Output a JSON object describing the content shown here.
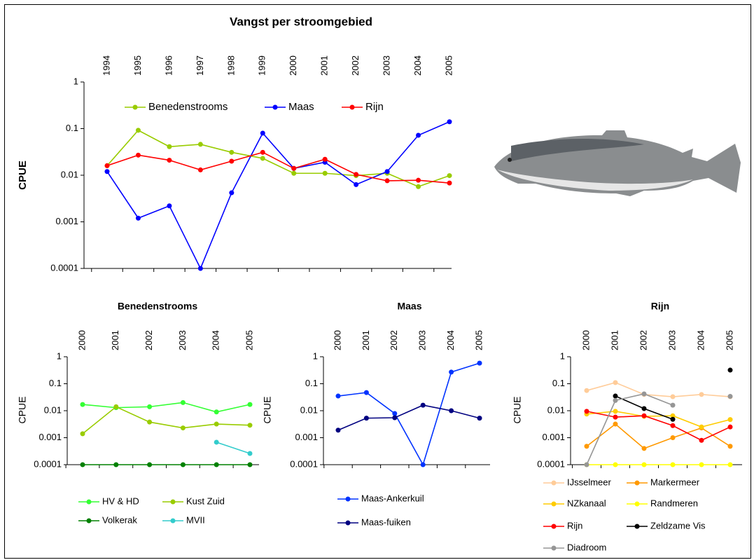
{
  "chart_data": [
    {
      "type": "line",
      "title": "Vangst per stroomgebied",
      "y_label": "CPUE",
      "log_scale": true,
      "legend": "top",
      "categories": [
        "1994",
        "1995",
        "1996",
        "1997",
        "1998",
        "1999",
        "2000",
        "2001",
        "2002",
        "2003",
        "2004",
        "2005"
      ],
      "ylim": [
        0.0001,
        1
      ],
      "yticks": [
        0.0001,
        0.001,
        0.01,
        0.1,
        1
      ],
      "series": [
        {
          "name": "Benedenstrooms",
          "color": "#99cc00",
          "values": [
            0.016,
            0.092,
            0.041,
            0.046,
            0.031,
            0.023,
            0.011,
            0.011,
            0.0098,
            0.011,
            0.0057,
            0.0098
          ]
        },
        {
          "name": "Maas",
          "color": "#0000ff",
          "values": [
            0.012,
            0.0012,
            0.0022,
            0.0001,
            0.0042,
            0.08,
            0.014,
            0.019,
            0.0063,
            0.012,
            0.072,
            0.14
          ]
        },
        {
          "name": "Rijn",
          "color": "#ff0000",
          "values": [
            0.016,
            0.027,
            0.021,
            0.013,
            0.02,
            0.031,
            0.014,
            0.022,
            0.0104,
            0.0076,
            0.0078,
            0.0068
          ]
        }
      ]
    },
    {
      "type": "line",
      "title": "Benedenstrooms",
      "y_label": "CPUE",
      "log_scale": true,
      "legend": "bottom",
      "categories": [
        "2000",
        "2001",
        "2002",
        "2003",
        "2004",
        "2005"
      ],
      "ylim": [
        0.0001,
        1
      ],
      "yticks": [
        0.0001,
        0.001,
        0.01,
        0.1,
        1
      ],
      "series": [
        {
          "name": "HV & HD",
          "color": "#33ff33",
          "values": [
            0.017,
            0.013,
            0.014,
            0.02,
            0.009,
            0.017
          ]
        },
        {
          "name": "Kust Zuid",
          "color": "#99cc00",
          "values": [
            0.0014,
            0.014,
            0.0038,
            0.0023,
            0.0032,
            0.0029
          ]
        },
        {
          "name": "Volkerak",
          "color": "#008000",
          "values": [
            0.0001,
            0.0001,
            0.0001,
            0.0001,
            0.0001,
            0.0001
          ]
        },
        {
          "name": "MVII",
          "color": "#33cccc",
          "values": [
            null,
            null,
            null,
            null,
            0.00068,
            0.00026
          ]
        }
      ]
    },
    {
      "type": "line",
      "title": "Maas",
      "y_label": "CPUE",
      "log_scale": true,
      "legend": "bottom",
      "categories": [
        "2000",
        "2001",
        "2002",
        "2003",
        "2004",
        "2005"
      ],
      "ylim": [
        0.0001,
        1
      ],
      "yticks": [
        0.0001,
        0.001,
        0.01,
        0.1,
        1
      ],
      "series": [
        {
          "name": "Maas-Ankerkuil",
          "color": "#0033ff",
          "values": [
            0.035,
            0.047,
            0.0079,
            0.0001,
            0.27,
            0.58
          ]
        },
        {
          "name": "Maas-fuiken",
          "color": "#000080",
          "values": [
            0.0019,
            0.0053,
            0.0055,
            0.016,
            0.01,
            0.0053
          ]
        }
      ]
    },
    {
      "type": "line",
      "title": "Rijn",
      "y_label": "CPUE",
      "log_scale": true,
      "legend": "bottom",
      "categories": [
        "2000",
        "2001",
        "2002",
        "2003",
        "2004",
        "2005"
      ],
      "ylim": [
        0.0001,
        1
      ],
      "yticks": [
        0.0001,
        0.001,
        0.01,
        0.1,
        1
      ],
      "series": [
        {
          "name": "IJsselmeer",
          "color": "#ffcc99",
          "values": [
            0.056,
            0.11,
            0.04,
            0.033,
            0.04,
            0.033
          ]
        },
        {
          "name": "Markermeer",
          "color": "#ff9900",
          "values": [
            0.00048,
            0.0032,
            0.0004,
            0.001,
            0.0023,
            0.00048
          ]
        },
        {
          "name": "NZkanaal",
          "color": "#ffcc00",
          "values": [
            0.0075,
            0.0095,
            0.0062,
            0.0065,
            0.0025,
            0.0047
          ]
        },
        {
          "name": "Randmeren",
          "color": "#ffff00",
          "values": [
            0.0001,
            0.0001,
            0.0001,
            0.0001,
            0.0001,
            0.0001
          ]
        },
        {
          "name": "Rijn",
          "color": "#ff0000",
          "values": [
            0.0095,
            0.0058,
            0.0065,
            0.0028,
            0.0008,
            0.0025
          ]
        },
        {
          "name": "Zeldzame Vis",
          "color": "#000000",
          "values": [
            null,
            0.035,
            0.012,
            0.0048,
            null,
            0.32
          ]
        },
        {
          "name": "Diadroom",
          "color": "#969696",
          "values": [
            0.0001,
            0.024,
            0.042,
            0.016,
            null,
            0.034
          ]
        }
      ]
    }
  ]
}
